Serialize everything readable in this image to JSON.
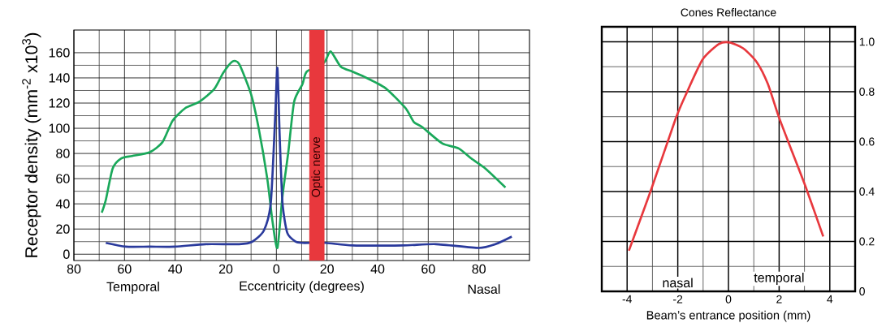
{
  "chart_data": [
    {
      "type": "line",
      "xlabel": "Eccentricity (degrees)",
      "ylabel": "Receptor density (mm$^{-2}$ x10$^{3}$)",
      "xlim": [
        -80,
        100
      ],
      "ylim": [
        -5,
        178
      ],
      "xticks": [
        {
          "value": -80,
          "label": "80"
        },
        {
          "value": -60,
          "label": "60"
        },
        {
          "value": -40,
          "label": "40"
        },
        {
          "value": -20,
          "label": "20"
        },
        0,
        20,
        40,
        60,
        80
      ],
      "yticks": [
        0,
        20,
        40,
        60,
        80,
        100,
        120,
        140,
        160
      ],
      "grid": true,
      "marker": "none",
      "line_style": "solid",
      "series": [
        {
          "color": "#1aa85a",
          "x": [
            -69,
            -67.4,
            -64.7,
            -61.4,
            -57,
            -50,
            -45,
            -41,
            -36,
            -30.5,
            -24.6,
            -21,
            -17.4,
            -14.7,
            -10,
            -7,
            -3.6,
            -1.6,
            0.4,
            2.4,
            4.7,
            7,
            10.3,
            12,
            18.8,
            21.4,
            25.4,
            30,
            34.6,
            43,
            51,
            54.3,
            57.6,
            65.5,
            72,
            77,
            82.6,
            90.5
          ],
          "values": [
            33,
            43,
            68,
            76,
            78,
            81,
            89,
            106,
            116,
            121,
            131,
            144,
            153,
            151,
            127,
            100,
            60,
            27,
            5,
            46,
            81,
            121,
            135,
            145,
            152,
            161,
            149,
            145,
            141,
            132,
            116,
            105,
            101,
            88,
            84,
            76,
            68,
            53
          ]
        },
        {
          "color": "#2a3a9c",
          "x": [
            -67.4,
            -59.5,
            -50,
            -40,
            -28,
            -14.7,
            -9.5,
            -4.9,
            -2.2,
            -0.5,
            0.4,
            1.3,
            2.4,
            4.3,
            7.6,
            10.3,
            19.5,
            30,
            50,
            63,
            80,
            86.6,
            93
          ],
          "values": [
            9,
            6,
            6,
            6,
            8,
            8,
            10,
            19,
            41,
            108,
            148,
            94,
            41,
            17,
            10,
            9,
            9,
            7,
            7,
            8,
            5,
            8,
            14
          ]
        }
      ],
      "bands": [
        {
          "axis": "x",
          "from": 13,
          "to": 19,
          "label": "Optic nerve",
          "color": "#e8383d"
        }
      ],
      "annotations": [
        "Temporal",
        "Nasal"
      ]
    },
    {
      "type": "line",
      "title": "Cones Reflectance",
      "xlabel": "Beam’s entrance position (mm)",
      "xlim": [
        -5,
        5
      ],
      "ylim": [
        0,
        1.06
      ],
      "xticks": [
        -4,
        -2,
        0,
        2,
        4
      ],
      "yticks": [
        {
          "value": 0,
          "label": "0"
        },
        0.2,
        0.4,
        0.6,
        0.8,
        {
          "value": 1,
          "label": "1.0"
        }
      ],
      "grid": true,
      "marker": "none",
      "line_style": "solid",
      "series": [
        {
          "color": "#e8383d",
          "x": [
            -3.93,
            -3.05,
            -2.09,
            -1.66,
            -1.02,
            -0.37,
            0.05,
            0.59,
            1.12,
            1.55,
            1.98,
            2.51,
            3.05,
            3.74
          ],
          "values": [
            0.163,
            0.408,
            0.69,
            0.793,
            0.929,
            0.991,
            0.997,
            0.973,
            0.918,
            0.832,
            0.701,
            0.56,
            0.418,
            0.22
          ]
        }
      ],
      "annotations": [
        "nasal",
        "temporal"
      ]
    }
  ]
}
